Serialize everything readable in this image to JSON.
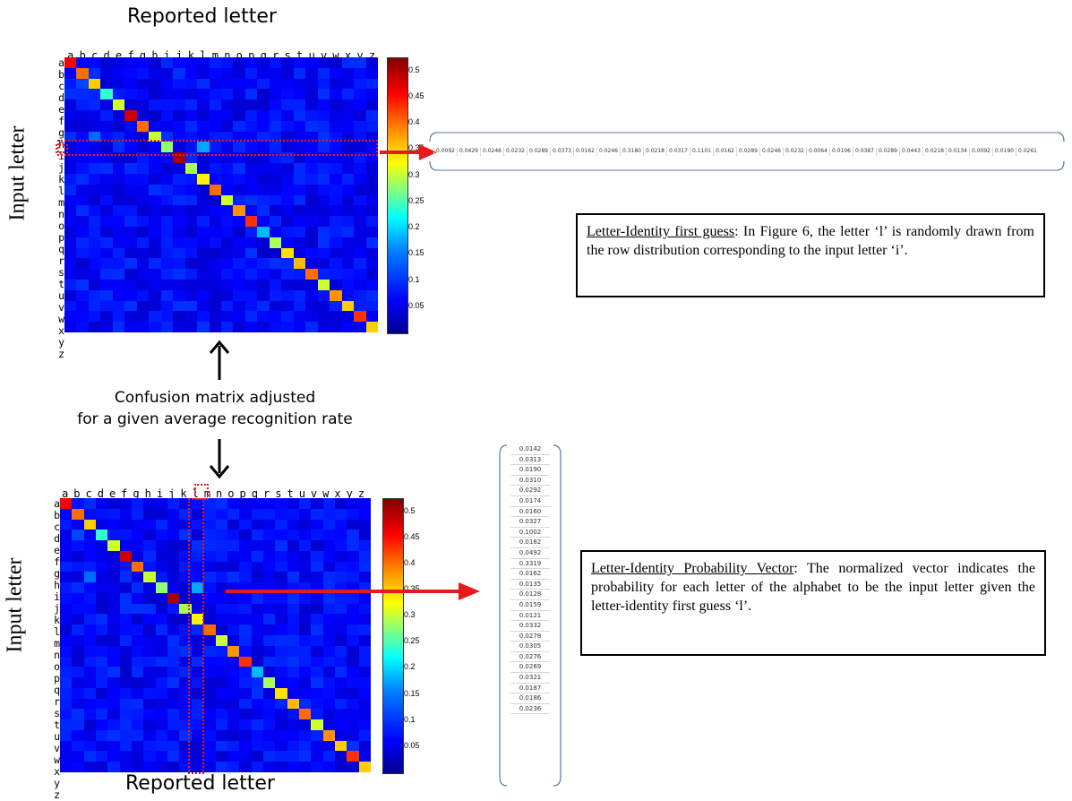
{
  "letters": [
    "a",
    "b",
    "c",
    "d",
    "e",
    "f",
    "g",
    "h",
    "i",
    "j",
    "k",
    "l",
    "m",
    "n",
    "o",
    "p",
    "q",
    "r",
    "s",
    "t",
    "u",
    "v",
    "w",
    "x",
    "y",
    "z"
  ],
  "top_title": "Reported letter",
  "bottom_title": "Reported letter",
  "side_title_top": "Input letter",
  "side_title_bottom": "Input letter",
  "caption_line1": "Confusion matrix adjusted",
  "caption_line2": "for a given average recognition rate",
  "colorbar_ticks": [
    "0.5",
    "0.45",
    "0.4",
    "0.35",
    "0.3",
    "0.25",
    "0.2",
    "0.15",
    "0.1",
    "0.05"
  ],
  "row_vector": [
    "0.0092",
    "0.0429",
    "0.0246",
    "0.0232",
    "0.0289",
    "0.0373",
    "0.0162",
    "0.0246",
    "0.3180",
    "0.0218",
    "0.0317",
    "0.1101",
    "0.0162",
    "0.0289",
    "0.0246",
    "0.0232",
    "0.0064",
    "0.0106",
    "0.0387",
    "0.0289",
    "0.0443",
    "0.0218",
    "0.0134",
    "0.0092",
    "0.0190",
    "0.0261"
  ],
  "col_vector": [
    "0.0142",
    "0.0313",
    "0.0190",
    "0.0310",
    "0.0292",
    "0.0174",
    "0.0160",
    "0.0327",
    "0.1002",
    "0.0182",
    "0.0492",
    "0.3319",
    "0.0162",
    "0.0135",
    "0.0128",
    "0.0159",
    "0.0121",
    "0.0332",
    "0.0278",
    "0.0305",
    "0.0276",
    "0.0269",
    "0.0321",
    "0.0187",
    "0.0186",
    "0.0236"
  ],
  "box_top": {
    "heading": "Letter-Identity first guess",
    "text": ": In Figure 6, the letter ‘l’ is randomly drawn from the row distribution corresponding to the input letter ‘i’."
  },
  "box_bottom": {
    "heading": "Letter-Identity Probability Vector",
    "text": ": The normalized vector indicates the probability for each letter of the alphabet to be the input letter given the letter-identity first guess ‘l’."
  },
  "colors": {
    "highlight": "#e8191a",
    "arrow": "#e8191a",
    "bracket": "#5a7aa0"
  }
}
